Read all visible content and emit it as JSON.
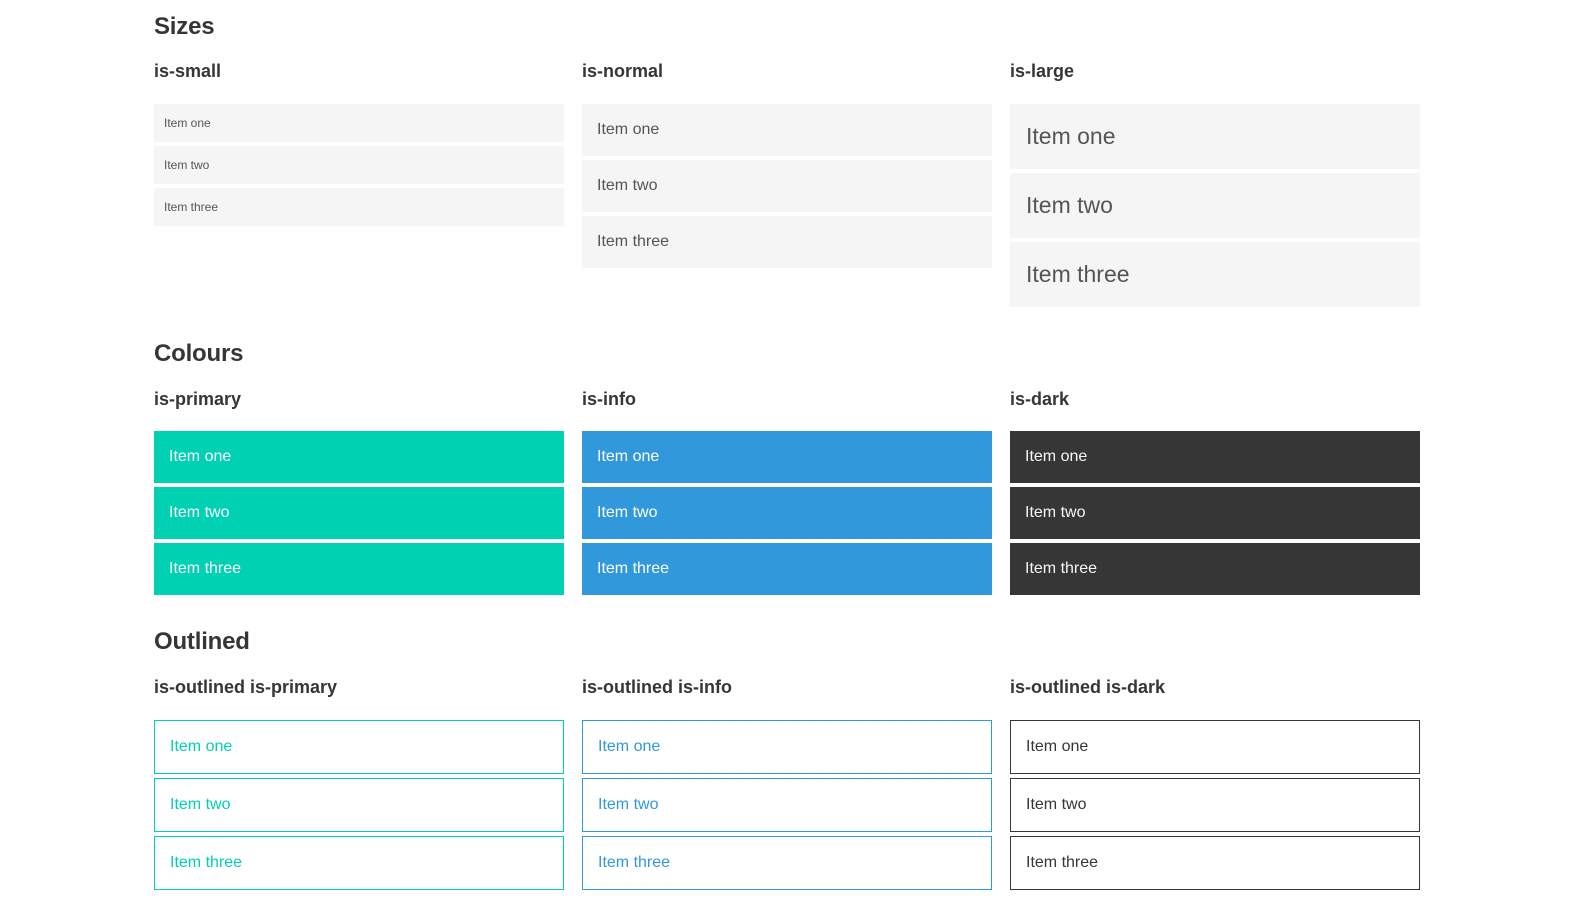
{
  "colors": {
    "primary": "#00d1b2",
    "info": "#3298dc",
    "dark": "#363636",
    "item_background": "#f5f5f5",
    "item_text": "#555555",
    "heading_text": "#363636",
    "page_background": "#ffffff"
  },
  "sections": [
    {
      "title": "Sizes",
      "groups": [
        {
          "label": "is-small",
          "items": [
            "Item one",
            "Item two",
            "Item three"
          ]
        },
        {
          "label": "is-normal",
          "items": [
            "Item one",
            "Item two",
            "Item three"
          ]
        },
        {
          "label": "is-large",
          "items": [
            "Item one",
            "Item two",
            "Item three"
          ]
        }
      ]
    },
    {
      "title": "Colours",
      "groups": [
        {
          "label": "is-primary",
          "items": [
            "Item one",
            "Item two",
            "Item three"
          ]
        },
        {
          "label": "is-info",
          "items": [
            "Item one",
            "Item two",
            "Item three"
          ]
        },
        {
          "label": "is-dark",
          "items": [
            "Item one",
            "Item two",
            "Item three"
          ]
        }
      ]
    },
    {
      "title": "Outlined",
      "groups": [
        {
          "label": "is-outlined is-primary",
          "items": [
            "Item one",
            "Item two",
            "Item three"
          ]
        },
        {
          "label": "is-outlined is-info",
          "items": [
            "Item one",
            "Item two",
            "Item three"
          ]
        },
        {
          "label": "is-outlined is-dark",
          "items": [
            "Item one",
            "Item two",
            "Item three"
          ]
        }
      ]
    }
  ]
}
